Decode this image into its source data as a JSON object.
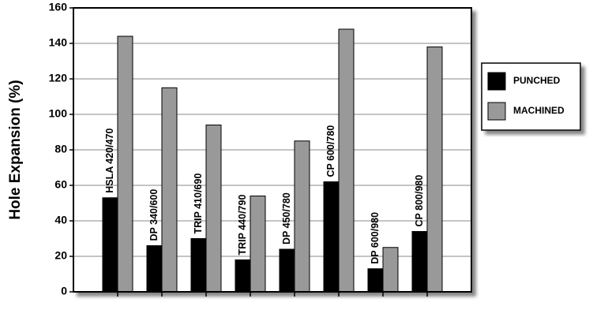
{
  "chart_data": {
    "type": "bar",
    "y_label": "Hole Expansion (%)",
    "categories": [
      "HSLA 420/470",
      "DP 340/600",
      "TRIP 410/690",
      "TRIP 440/790",
      "DP 450/780",
      "CP 600/780",
      "DP 600/980",
      "CP 800/980"
    ],
    "series": [
      {
        "name": "PUNCHED",
        "color": "#000000",
        "values": [
          53,
          26,
          30,
          18,
          24,
          62,
          13,
          34
        ]
      },
      {
        "name": "MACHINED",
        "color": "#999999",
        "values": [
          144,
          115,
          94,
          54,
          85,
          148,
          25,
          138
        ]
      }
    ],
    "ylim": [
      0,
      160
    ],
    "yticks": [
      0,
      20,
      40,
      60,
      80,
      100,
      120,
      140,
      160
    ],
    "grid": true,
    "legend": "right"
  }
}
